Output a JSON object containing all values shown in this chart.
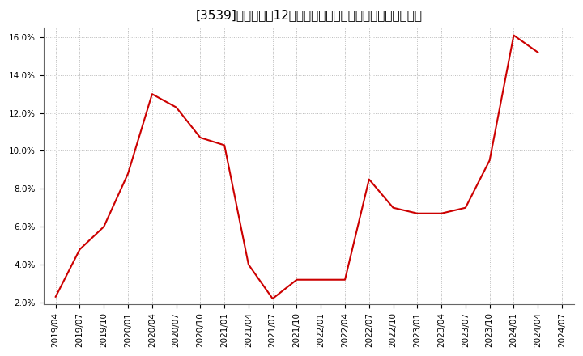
{
  "title": "[3539]　売上高の12か月移動合計の対前年同期増減率の推移",
  "x_labels": [
    "2019/04",
    "2019/07",
    "2019/10",
    "2020/01",
    "2020/04",
    "2020/07",
    "2020/10",
    "2021/01",
    "2021/04",
    "2021/07",
    "2021/10",
    "2022/01",
    "2022/04",
    "2022/07",
    "2022/10",
    "2023/01",
    "2023/04",
    "2023/07",
    "2023/10",
    "2024/01",
    "2024/04",
    "2024/07"
  ],
  "y_values": [
    2.3,
    4.8,
    6.0,
    8.8,
    13.0,
    12.3,
    10.7,
    10.3,
    4.0,
    2.2,
    3.2,
    3.2,
    3.2,
    8.5,
    7.0,
    6.7,
    6.7,
    7.0,
    9.5,
    16.1,
    15.2,
    null
  ],
  "line_color": "#cc0000",
  "line_width": 1.5,
  "ylim_min": 2.0,
  "ylim_max": 16.5,
  "yticks": [
    2.0,
    4.0,
    6.0,
    8.0,
    10.0,
    12.0,
    14.0,
    16.0
  ],
  "background_color": "#ffffff",
  "plot_bg_color": "#ffffff",
  "grid_color": "#bbbbbb",
  "title_fontsize": 11,
  "tick_fontsize": 7.5
}
